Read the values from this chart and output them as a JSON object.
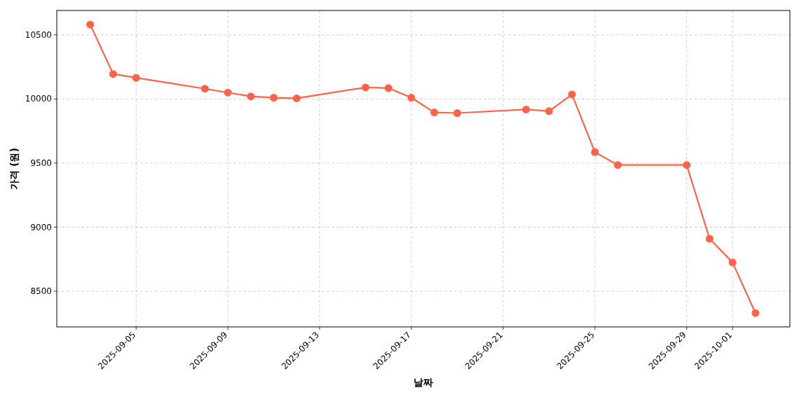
{
  "chart_data": {
    "type": "line",
    "xlabel": "날짜",
    "ylabel": "가격 (원)",
    "x": [
      "2025-09-03",
      "2025-09-04",
      "2025-09-05",
      "2025-09-08",
      "2025-09-09",
      "2025-09-10",
      "2025-09-11",
      "2025-09-12",
      "2025-09-15",
      "2025-09-16",
      "2025-09-17",
      "2025-09-18",
      "2025-09-19",
      "2025-09-22",
      "2025-09-23",
      "2025-09-24",
      "2025-09-25",
      "2025-09-26",
      "2025-09-29",
      "2025-09-30",
      "2025-10-01",
      "2025-10-02"
    ],
    "series": [
      {
        "color": "#ff6347",
        "values": [
          10580,
          10195,
          10165,
          10080,
          10050,
          10020,
          10010,
          10005,
          10090,
          10085,
          10010,
          9895,
          9890,
          9918,
          9905,
          10035,
          9585,
          9485,
          9485,
          8910,
          8725,
          8330
        ]
      }
    ],
    "xlim": [
      "2025-09-01T13:00",
      "2025-10-03T12:00"
    ],
    "xticks": [
      "2025-09-05",
      "2025-09-09",
      "2025-09-13",
      "2025-09-17",
      "2025-09-21",
      "2025-09-25",
      "2025-09-29",
      "2025-10-01"
    ],
    "ylim": [
      8222,
      10690
    ],
    "yticks": [
      8500,
      9000,
      9500,
      10000,
      10500
    ],
    "grid": true,
    "marker": "circle",
    "line_style": "solid"
  }
}
